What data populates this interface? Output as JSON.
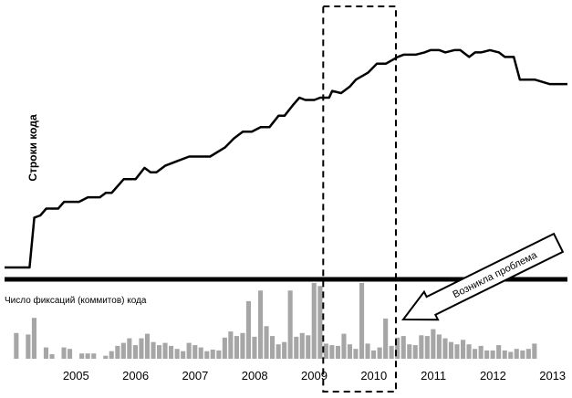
{
  "chart_data": [
    {
      "type": "line",
      "ylabel": "Строки кода",
      "xlabel": "",
      "x_unit": "year",
      "xlim": [
        2004.3,
        2013.75
      ],
      "ylim": [
        0,
        100
      ],
      "grid": false,
      "series": [
        {
          "x": [
            2004.3,
            2004.72,
            2004.8,
            2004.9,
            2005.0,
            2005.2,
            2005.3,
            2005.55,
            2005.7,
            2005.9,
            2006.0,
            2006.1,
            2006.3,
            2006.5,
            2006.65,
            2006.75,
            2006.85,
            2007.0,
            2007.2,
            2007.4,
            2007.5,
            2007.6,
            2007.75,
            2008.0,
            2008.15,
            2008.3,
            2008.45,
            2008.6,
            2008.75,
            2008.9,
            2009.0,
            2009.15,
            2009.25,
            2009.35,
            2009.5,
            2009.6,
            2009.75,
            2009.8,
            2009.95,
            2010.1,
            2010.2,
            2010.4,
            2010.55,
            2010.7,
            2010.9,
            2011.0,
            2011.2,
            2011.35,
            2011.45,
            2011.6,
            2011.7,
            2011.85,
            2011.95,
            2012.1,
            2012.2,
            2012.3,
            2012.45,
            2012.6,
            2012.7,
            2012.85,
            2012.95,
            2013.2,
            2013.45,
            2013.75
          ],
          "values": [
            0,
            0,
            22,
            23,
            26,
            26,
            29,
            29,
            31,
            31,
            33,
            33,
            39,
            39,
            44,
            42,
            42,
            45,
            47,
            49,
            49,
            49,
            49,
            53,
            57,
            60,
            60,
            62,
            62,
            67,
            67,
            72,
            75,
            74,
            74,
            75,
            75,
            78,
            77,
            80,
            83,
            86,
            90,
            90,
            93,
            94,
            94,
            95,
            96,
            96,
            95,
            96,
            96,
            93,
            95,
            95,
            96,
            95,
            93,
            93,
            83,
            83,
            81,
            81
          ]
        }
      ]
    },
    {
      "type": "bar",
      "ylabel": "Число фиксаций (коммитов) кода",
      "xlabel": "",
      "x_unit": "year",
      "xlim": [
        2004.3,
        2013.75
      ],
      "ylim": [
        0,
        100
      ],
      "bar_width": 0.085,
      "categories": [
        "2004.5",
        "2004.7",
        "2004.8",
        "2005.0",
        "2005.1",
        "2005.3",
        "2005.4",
        "2005.6",
        "2005.7",
        "2005.8",
        "2006.0",
        "2006.1",
        "2006.2",
        "2006.3",
        "2006.4",
        "2006.5",
        "2006.6",
        "2006.7",
        "2006.8",
        "2006.9",
        "2007.0",
        "2007.1",
        "2007.2",
        "2007.3",
        "2007.4",
        "2007.5",
        "2007.6",
        "2007.7",
        "2007.8",
        "2007.9",
        "2008.0",
        "2008.1",
        "2008.2",
        "2008.3",
        "2008.4",
        "2008.5",
        "2008.6",
        "2008.7",
        "2008.8",
        "2008.9",
        "2009.0",
        "2009.1",
        "2009.2",
        "2009.3",
        "2009.4",
        "2009.5",
        "2009.6",
        "2009.7",
        "2009.8",
        "2009.9",
        "2010.0",
        "2010.1",
        "2010.2",
        "2010.3",
        "2010.4",
        "2010.5",
        "2010.6",
        "2010.7",
        "2010.8",
        "2010.9",
        "2011.0",
        "2011.1",
        "2011.2",
        "2011.3",
        "2011.4",
        "2011.5",
        "2011.6",
        "2011.7",
        "2011.8",
        "2011.9",
        "2012.0",
        "2012.1",
        "2012.2",
        "2012.3",
        "2012.4",
        "2012.5",
        "2012.6",
        "2012.7",
        "2012.8",
        "2012.9",
        "2013.0",
        "2013.1",
        "2013.2"
      ],
      "values": [
        34,
        32,
        54,
        15,
        6,
        15,
        13,
        7,
        7,
        7,
        4,
        10,
        17,
        21,
        27,
        18,
        27,
        33,
        22,
        18,
        21,
        17,
        13,
        10,
        21,
        18,
        15,
        10,
        12,
        11,
        28,
        36,
        30,
        34,
        76,
        29,
        90,
        43,
        30,
        19,
        22,
        90,
        29,
        34,
        31,
        100,
        96,
        20,
        18,
        17,
        33,
        19,
        13,
        100,
        20,
        11,
        15,
        53,
        17,
        28,
        30,
        19,
        18,
        31,
        30,
        39,
        32,
        27,
        22,
        19,
        25,
        19,
        13,
        17,
        11,
        11,
        18,
        11,
        9,
        13,
        11,
        13,
        20
      ]
    }
  ],
  "axis": {
    "ticks": [
      "2005",
      "2006",
      "2007",
      "2008",
      "2009",
      "2010",
      "2011",
      "2012",
      "2013"
    ]
  },
  "annotation": {
    "label": "Возникла проблема",
    "highlight_range": [
      2009.65,
      2010.87
    ]
  },
  "colors": {
    "line": "#000000",
    "bars": "#a6a6a6",
    "divider": "#000000",
    "highlight_border": "#000000"
  }
}
